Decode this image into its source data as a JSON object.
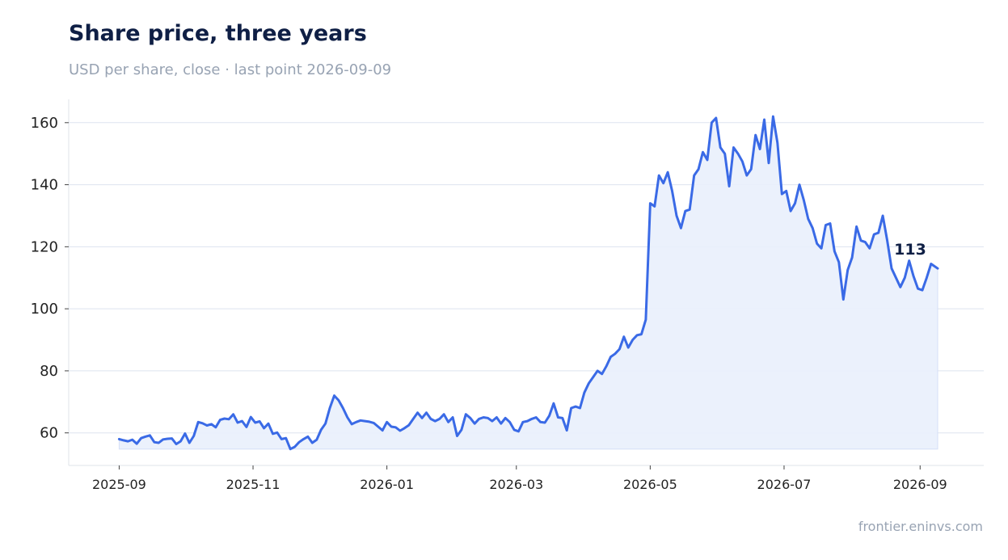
{
  "title": "Share price, three years",
  "subtitle": "USD per share, close · last point 2026-09-09",
  "credit": "frontier.eninvs.com",
  "colors": {
    "line": "#3a6ae6",
    "fill": "#e9effc",
    "title": "#0f1f45",
    "muted": "#98a3b3",
    "grid": "#dde3ef"
  },
  "chart_data": {
    "type": "area",
    "title": "Share price, three years",
    "subtitle": "USD per share, close · last point 2026-09-09",
    "xlabel": "",
    "ylabel": "",
    "ylim": [
      49.5,
      167.5
    ],
    "xlim": [
      "2025-08-09",
      "2026-09-30"
    ],
    "grid": true,
    "y_ticks": [
      60,
      80,
      100,
      120,
      140,
      160
    ],
    "x_ticks": [
      "2025-09",
      "2025-11",
      "2026-01",
      "2026-03",
      "2026-05",
      "2026-07",
      "2026-09"
    ],
    "x_tick_dates": [
      "2025-09-01",
      "2025-11-01",
      "2026-01-01",
      "2026-03-01",
      "2026-05-01",
      "2026-07-01",
      "2026-09-01"
    ],
    "series": [
      {
        "x": [
          "2025-09-01",
          "2025-09-03",
          "2025-09-05",
          "2025-09-07",
          "2025-09-09",
          "2025-09-11",
          "2025-09-13",
          "2025-09-15",
          "2025-09-17",
          "2025-09-19",
          "2025-09-21",
          "2025-09-23",
          "2025-09-25",
          "2025-09-27",
          "2025-09-29",
          "2025-10-01",
          "2025-10-03",
          "2025-10-05",
          "2025-10-07",
          "2025-10-09",
          "2025-10-11",
          "2025-10-13",
          "2025-10-15",
          "2025-10-17",
          "2025-10-19",
          "2025-10-21",
          "2025-10-23",
          "2025-10-25",
          "2025-10-27",
          "2025-10-29",
          "2025-10-31",
          "2025-11-02",
          "2025-11-04",
          "2025-11-06",
          "2025-11-08",
          "2025-11-10",
          "2025-11-12",
          "2025-11-14",
          "2025-11-16",
          "2025-11-18",
          "2025-11-20",
          "2025-11-22",
          "2025-11-24",
          "2025-11-26",
          "2025-11-28",
          "2025-11-30",
          "2025-12-02",
          "2025-12-04",
          "2025-12-06",
          "2025-12-08",
          "2025-12-10",
          "2025-12-12",
          "2025-12-14",
          "2025-12-16",
          "2025-12-18",
          "2025-12-20",
          "2025-12-22",
          "2025-12-24",
          "2025-12-26",
          "2025-12-28",
          "2025-12-30",
          "2026-01-01",
          "2026-01-03",
          "2026-01-05",
          "2026-01-07",
          "2026-01-09",
          "2026-01-11",
          "2026-01-13",
          "2026-01-15",
          "2026-01-17",
          "2026-01-19",
          "2026-01-21",
          "2026-01-23",
          "2026-01-25",
          "2026-01-27",
          "2026-01-29",
          "2026-01-31",
          "2026-02-02",
          "2026-02-04",
          "2026-02-06",
          "2026-02-08",
          "2026-02-10",
          "2026-02-12",
          "2026-02-14",
          "2026-02-16",
          "2026-02-18",
          "2026-02-20",
          "2026-02-22",
          "2026-02-24",
          "2026-02-26",
          "2026-02-28",
          "2026-03-02",
          "2026-03-04",
          "2026-03-06",
          "2026-03-08",
          "2026-03-10",
          "2026-03-12",
          "2026-03-14",
          "2026-03-16",
          "2026-03-18",
          "2026-03-20",
          "2026-03-22",
          "2026-03-24",
          "2026-03-26",
          "2026-03-28",
          "2026-03-30",
          "2026-04-01",
          "2026-04-03",
          "2026-04-05",
          "2026-04-07",
          "2026-04-09",
          "2026-04-11",
          "2026-04-13",
          "2026-04-15",
          "2026-04-17",
          "2026-04-19",
          "2026-04-21",
          "2026-04-23",
          "2026-04-25",
          "2026-04-27",
          "2026-04-29",
          "2026-05-01",
          "2026-05-03",
          "2026-05-05",
          "2026-05-07",
          "2026-05-09",
          "2026-05-11",
          "2026-05-13",
          "2026-05-15",
          "2026-05-17",
          "2026-05-19",
          "2026-05-21",
          "2026-05-23",
          "2026-05-25",
          "2026-05-27",
          "2026-05-29",
          "2026-05-31",
          "2026-06-02",
          "2026-06-04",
          "2026-06-06",
          "2026-06-08",
          "2026-06-10",
          "2026-06-12",
          "2026-06-14",
          "2026-06-16",
          "2026-06-18",
          "2026-06-20",
          "2026-06-22",
          "2026-06-24",
          "2026-06-26",
          "2026-06-28",
          "2026-06-30",
          "2026-07-02",
          "2026-07-04",
          "2026-07-06",
          "2026-07-08",
          "2026-07-10",
          "2026-07-12",
          "2026-07-14",
          "2026-07-16",
          "2026-07-18",
          "2026-07-20",
          "2026-07-22",
          "2026-07-24",
          "2026-07-26",
          "2026-07-28",
          "2026-07-30",
          "2026-08-01",
          "2026-08-03",
          "2026-08-05",
          "2026-08-07",
          "2026-08-09",
          "2026-08-11",
          "2026-08-13",
          "2026-08-15",
          "2026-08-17",
          "2026-08-19",
          "2026-08-21",
          "2026-08-23",
          "2026-08-25",
          "2026-08-27",
          "2026-08-29",
          "2026-08-31",
          "2026-09-02",
          "2026-09-04",
          "2026-09-06",
          "2026-09-09"
        ],
        "values": [
          58.0,
          57.6,
          57.3,
          57.8,
          56.5,
          58.3,
          58.8,
          59.2,
          57.0,
          56.8,
          57.9,
          58.1,
          58.2,
          56.4,
          57.3,
          59.8,
          56.8,
          59.0,
          63.5,
          63.1,
          62.4,
          62.8,
          61.8,
          64.2,
          64.6,
          64.4,
          66.0,
          63.3,
          63.8,
          61.9,
          65.1,
          63.3,
          63.7,
          61.5,
          63.0,
          59.7,
          60.1,
          58.0,
          58.3,
          54.8,
          55.5,
          57.0,
          58.0,
          58.8,
          56.8,
          57.8,
          61.0,
          63.0,
          68.0,
          72.0,
          70.5,
          68.0,
          65.0,
          62.8,
          63.5,
          64.0,
          63.8,
          63.6,
          63.2,
          62.0,
          60.8,
          63.5,
          62.0,
          61.8,
          60.7,
          61.5,
          62.5,
          64.5,
          66.5,
          64.8,
          66.5,
          64.5,
          63.8,
          64.5,
          66.0,
          63.5,
          65.0,
          59.0,
          61.0,
          66.0,
          64.8,
          63.0,
          64.5,
          65.0,
          64.8,
          63.8,
          65.0,
          63.0,
          64.8,
          63.5,
          61.0,
          60.5,
          63.5,
          63.8,
          64.5,
          65.0,
          63.5,
          63.3,
          65.5,
          69.5,
          65.0,
          64.8,
          60.8,
          68.0,
          68.5,
          68.0,
          73.0,
          76.0,
          78.0,
          80.0,
          79.0,
          81.5,
          84.5,
          85.5,
          87.0,
          91.0,
          87.5,
          90.0,
          91.5,
          91.8,
          96.5,
          134.0,
          133.0,
          143.0,
          140.5,
          144.0,
          138.0,
          130.0,
          126.0,
          131.5,
          132.0,
          143.0,
          145.0,
          150.5,
          148.0,
          160.0,
          161.5,
          152.0,
          150.0,
          139.5,
          152.0,
          150.0,
          147.5,
          143.0,
          145.0,
          156.0,
          151.5,
          161.0,
          147.0,
          162.0,
          153.5,
          137.0,
          138.0,
          131.5,
          134.0,
          140.0,
          135.0,
          129.0,
          126.0,
          121.0,
          119.5,
          127.0,
          127.5,
          118.5,
          115.0,
          103.0,
          112.5,
          116.5,
          126.5,
          122.0,
          121.5,
          119.5,
          124.0,
          124.5,
          130.0,
          122.0,
          113.0,
          110.0,
          107.0,
          110.0,
          115.5,
          110.5,
          106.5,
          106.0,
          110.0,
          114.5,
          113.0
        ]
      }
    ],
    "last_label": "113"
  }
}
